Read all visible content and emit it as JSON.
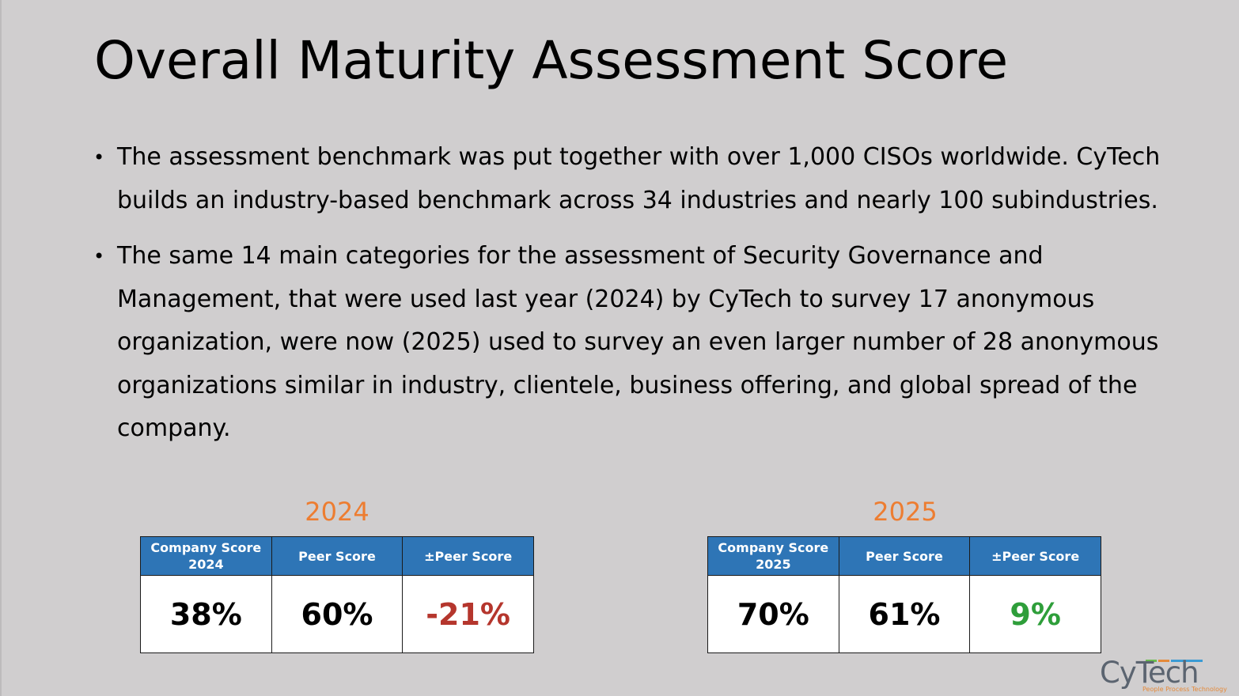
{
  "title": "Overall Maturity Assessment Score",
  "bullets": [
    "The assessment benchmark was put together with over 1,000 CISOs worldwide. CyTech builds an industry-based benchmark across 34 industries and nearly 100 subindustries.",
    "The same 14 main categories for the assessment of Security Governance and Management, that were used last year (2024) by CyTech to survey 17 anonymous organization, were now (2025) used to survey an even larger number of 28 anonymous organizations similar in industry, clientele, business offering, and global spread of the company."
  ],
  "bullet_symbol": "•",
  "tables": [
    {
      "year": "2024",
      "headers": [
        "Company Score 2024",
        "Peer Score",
        "±Peer Score"
      ],
      "values": [
        "38%",
        "60%",
        "-21%"
      ]
    },
    {
      "year": "2025",
      "headers": [
        "Company Score 2025",
        "Peer Score",
        "±Peer Score"
      ],
      "values": [
        "70%",
        "61%",
        "9%"
      ]
    }
  ],
  "colors": {
    "background": "#d0cecf",
    "year_label": "#ed7d31",
    "header_bg": "#2e75b6",
    "negative": "#b5362d",
    "positive": "#2e9e3a"
  },
  "logo": {
    "text": "CyTech",
    "tagline": "People Process Technology"
  }
}
